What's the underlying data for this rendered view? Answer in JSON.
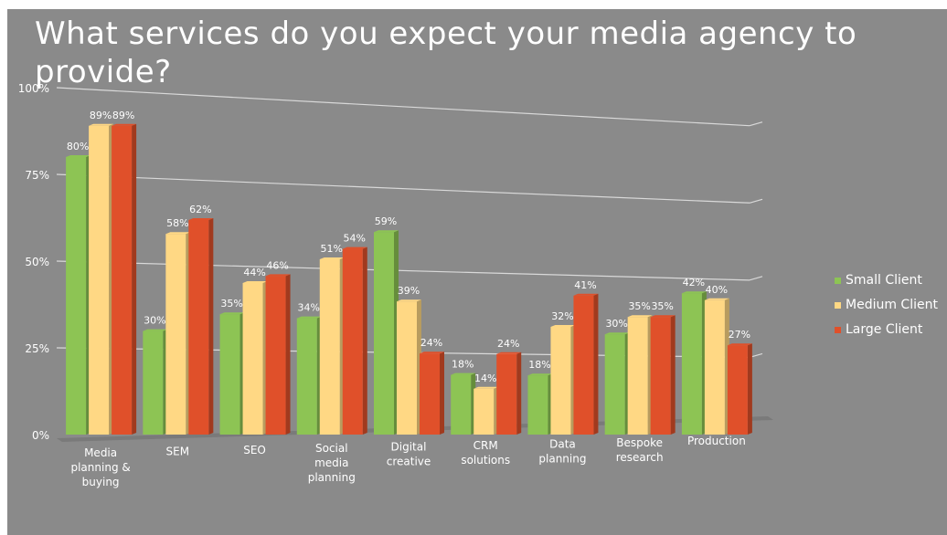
{
  "title": "What services do you expect your media agency to provide?",
  "colors": {
    "background": "#8a8a8a",
    "small_client": "#8dc454",
    "medium_client": "#ffd884",
    "large_client": "#e0502a"
  },
  "chart_data": {
    "type": "bar",
    "title": "What services do you expect your media agency to provide?",
    "xlabel": "",
    "ylabel": "",
    "ylim": [
      0,
      100
    ],
    "yticks": [
      "0%",
      "25%",
      "50%",
      "75%",
      "100%"
    ],
    "grid": true,
    "legend_position": "right",
    "categories": [
      [
        "Media",
        "planning &",
        "buying"
      ],
      [
        "SEM"
      ],
      [
        "SEO"
      ],
      [
        "Social",
        "media",
        "planning"
      ],
      [
        "Digital",
        "creative"
      ],
      [
        "CRM",
        "solutions"
      ],
      [
        "Data",
        "planning"
      ],
      [
        "Bespoke",
        "research"
      ],
      [
        "Production"
      ]
    ],
    "series": [
      {
        "name": "Small Client",
        "color": "#8dc454",
        "values": [
          80,
          30,
          35,
          34,
          59,
          18,
          18,
          30,
          42
        ]
      },
      {
        "name": "Medium Client",
        "color": "#ffd884",
        "values": [
          89,
          58,
          44,
          51,
          39,
          14,
          32,
          35,
          40
        ]
      },
      {
        "name": "Large Client",
        "color": "#e0502a",
        "values": [
          89,
          62,
          46,
          54,
          24,
          24,
          41,
          35,
          27
        ]
      }
    ]
  }
}
